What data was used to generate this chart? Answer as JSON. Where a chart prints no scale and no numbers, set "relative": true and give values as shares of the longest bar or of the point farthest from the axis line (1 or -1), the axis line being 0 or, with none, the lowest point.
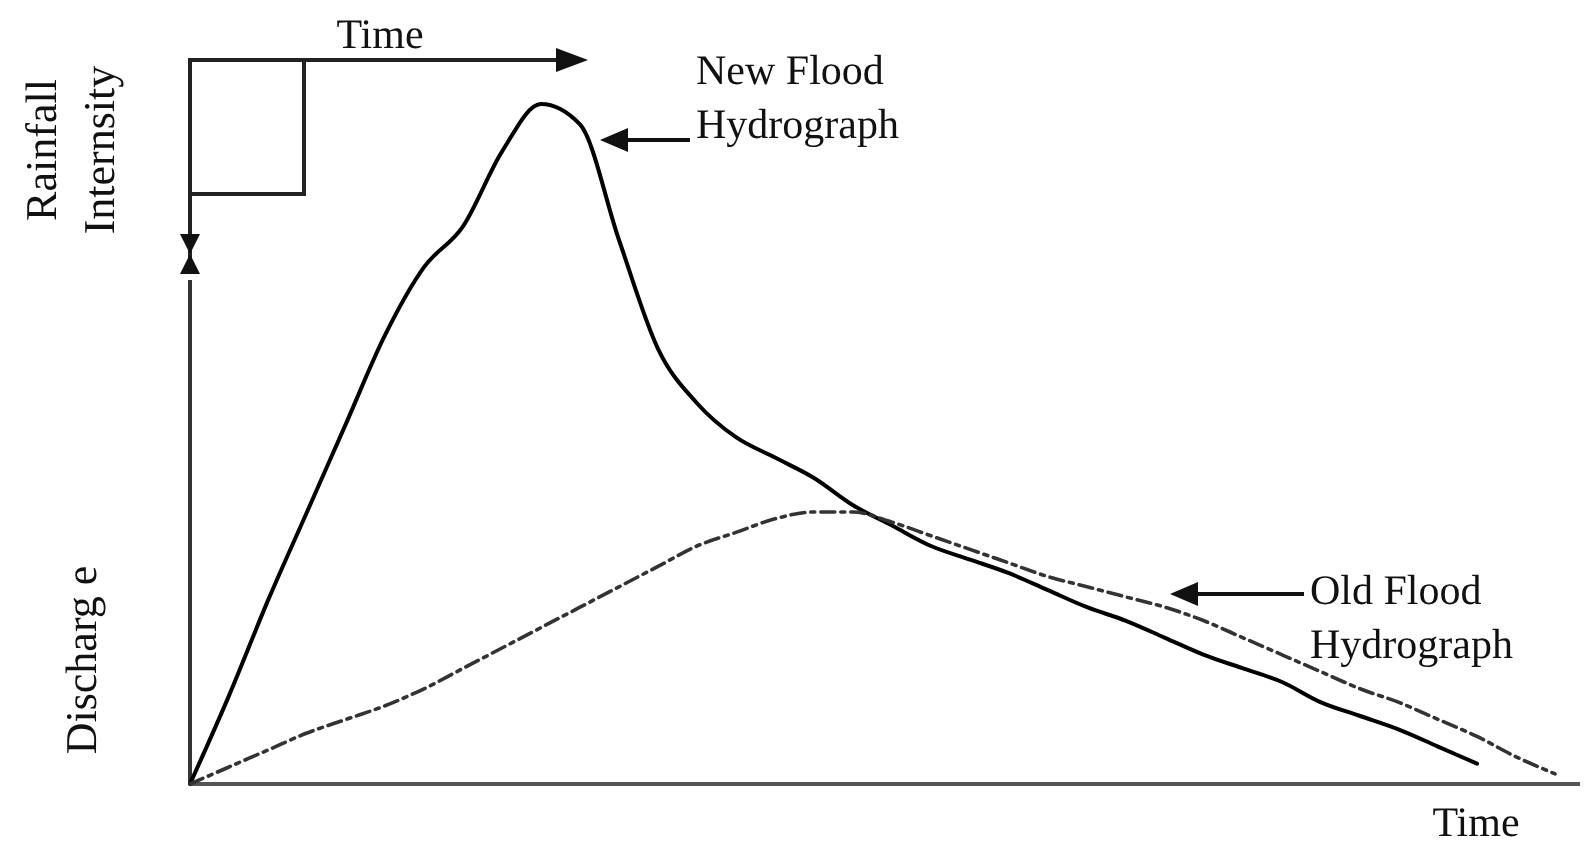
{
  "chart_data": {
    "type": "line",
    "relative": true,
    "xlabel": "Time",
    "ylabel": "Discharg e",
    "annotations": [
      "Rainfall Internsity",
      "Time"
    ],
    "categories": [
      null,
      null,
      null,
      null,
      null,
      null,
      null,
      null,
      null,
      null,
      null,
      null,
      null,
      null,
      null,
      null,
      null,
      null,
      null,
      null,
      null,
      null,
      null,
      null,
      null,
      null,
      null,
      null,
      null,
      null,
      null,
      null,
      null,
      null,
      null,
      null
    ],
    "series": [
      {
        "name": "New Flood Hydrograph",
        "color": "#000000",
        "line_style": "solid",
        "values": [
          0,
          0.13,
          0.27,
          0.4,
          0.53,
          0.66,
          0.76,
          0.82,
          0.93,
          1,
          0.97,
          0.8,
          0.64,
          0.56,
          0.51,
          0.48,
          0.45,
          0.41,
          0.38,
          0.35,
          0.33,
          0.31,
          0.285,
          0.26,
          0.24,
          0.215,
          0.19,
          0.17,
          0.15,
          0.12,
          0.1,
          0.08,
          0.055,
          0.03,
          null,
          null
        ]
      },
      {
        "name": "Old Flood Hydrograph",
        "color": "#333333",
        "line_style": "dashed",
        "values": [
          0,
          0.025,
          0.05,
          0.075,
          0.095,
          0.115,
          0.14,
          0.17,
          0.2,
          0.23,
          0.26,
          0.29,
          0.32,
          0.35,
          0.37,
          0.39,
          0.4,
          0.4,
          0.385,
          0.365,
          0.345,
          0.325,
          0.305,
          0.29,
          0.275,
          0.26,
          0.24,
          0.215,
          0.19,
          0.165,
          0.14,
          0.12,
          0.095,
          0.07,
          0.04,
          0.015
        ]
      }
    ],
    "legend": false,
    "grid": false,
    "marker": "none"
  }
}
